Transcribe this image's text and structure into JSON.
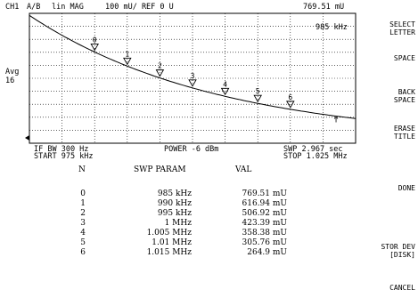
{
  "header": {
    "channel": "CH1",
    "measurement": "A/B",
    "format": "lin MAG",
    "scale": "100 mU/ REF 0 U",
    "marker_value": "769.51 mU",
    "marker_freq": "985 kHz"
  },
  "left_labels": {
    "avg": "Avg",
    "avg_count": "16"
  },
  "footer": {
    "ifbw": "IF BW 300 Hz",
    "start": "START  975 kHz",
    "power": "POWER -6 dBm",
    "swp": "SWP   2.967 sec",
    "stop": "STOP  1.025 MHz"
  },
  "table": {
    "headers": {
      "n": "N",
      "param": "SWP PARAM",
      "val": "VAL"
    },
    "rows": [
      {
        "n": "0",
        "param": "985 kHz",
        "val": "769.51 mU"
      },
      {
        "n": "1",
        "param": "990 kHz",
        "val": "616.94 mU"
      },
      {
        "n": "2",
        "param": "995 kHz",
        "val": "506.92 mU"
      },
      {
        "n": "3",
        "param": "1 MHz",
        "val": "423.39 mU"
      },
      {
        "n": "4",
        "param": "1.005 MHz",
        "val": "358.38 mU"
      },
      {
        "n": "5",
        "param": "1.01 MHz",
        "val": "305.76 mU"
      },
      {
        "n": "6",
        "param": "1.015 MHz",
        "val": "264.9 mU"
      }
    ]
  },
  "softkeys": [
    {
      "line1": "SELECT",
      "line2": "LETTER"
    },
    {
      "line1": "SPACE",
      "line2": ""
    },
    {
      "line1": "BACK",
      "line2": "SPACE"
    },
    {
      "line1": "ERASE",
      "line2": "TITLE"
    },
    {
      "line1": "DONE",
      "line2": ""
    },
    {
      "line1": "STOR DEV",
      "line2": "[DISK]"
    },
    {
      "line1": "CANCEL",
      "line2": ""
    }
  ],
  "markers": [
    "0",
    "1",
    "2",
    "3",
    "4",
    "5",
    "6"
  ],
  "colors": {
    "trace": "#000000",
    "grid": "#000000",
    "background": "#ffffff"
  }
}
